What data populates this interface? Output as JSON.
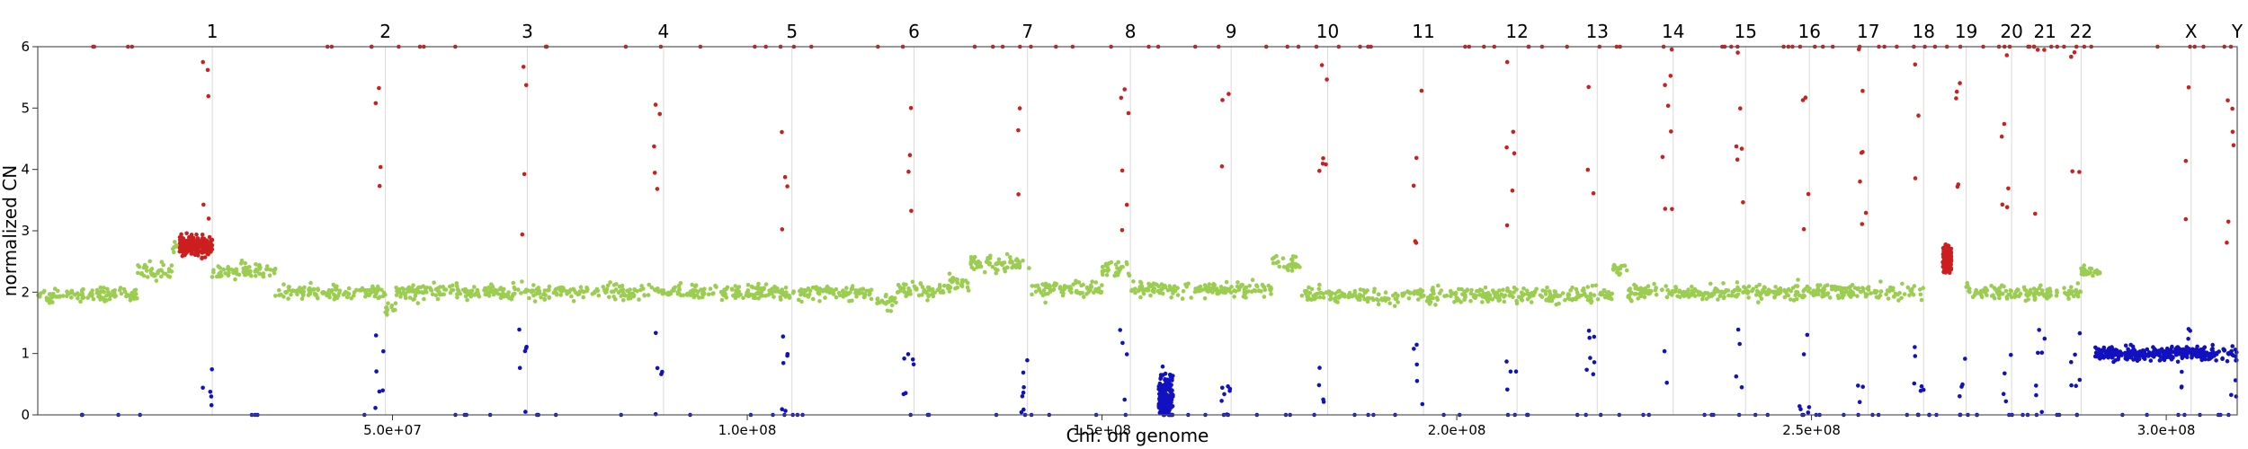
{
  "chart_data": {
    "type": "scatter",
    "title": "",
    "xlabel": "Chr. on genome",
    "ylabel": "normalized CN",
    "xlim": [
      0,
      310000000
    ],
    "ylim": [
      0,
      6
    ],
    "x_ticks": [
      {
        "value": 50000000,
        "label": "5.0e+07"
      },
      {
        "value": 100000000,
        "label": "1.0e+08"
      },
      {
        "value": 150000000,
        "label": "1.5e+08"
      },
      {
        "value": 200000000,
        "label": "2.0e+08"
      },
      {
        "value": 250000000,
        "label": "2.5e+08"
      },
      {
        "value": 300000000,
        "label": "3.0e+08"
      }
    ],
    "y_ticks": [
      0,
      1,
      2,
      3,
      4,
      5,
      6
    ],
    "chromosomes": [
      {
        "label": "1",
        "start": 0,
        "end": 24600000
      },
      {
        "label": "2",
        "start": 24600000,
        "end": 49000000
      },
      {
        "label": "3",
        "start": 49000000,
        "end": 69000000
      },
      {
        "label": "4",
        "start": 69000000,
        "end": 88200000
      },
      {
        "label": "5",
        "start": 88200000,
        "end": 106300000
      },
      {
        "label": "6",
        "start": 106300000,
        "end": 123500000
      },
      {
        "label": "7",
        "start": 123500000,
        "end": 139500000
      },
      {
        "label": "8",
        "start": 139500000,
        "end": 154000000
      },
      {
        "label": "9",
        "start": 154000000,
        "end": 168200000
      },
      {
        "label": "10",
        "start": 168200000,
        "end": 181800000
      },
      {
        "label": "11",
        "start": 181800000,
        "end": 195300000
      },
      {
        "label": "12",
        "start": 195300000,
        "end": 208500000
      },
      {
        "label": "13",
        "start": 208500000,
        "end": 219800000
      },
      {
        "label": "14",
        "start": 219800000,
        "end": 230500000
      },
      {
        "label": "15",
        "start": 230500000,
        "end": 240700000
      },
      {
        "label": "16",
        "start": 240700000,
        "end": 249700000
      },
      {
        "label": "17",
        "start": 249700000,
        "end": 258000000
      },
      {
        "label": "18",
        "start": 258000000,
        "end": 265800000
      },
      {
        "label": "19",
        "start": 265800000,
        "end": 271800000
      },
      {
        "label": "20",
        "start": 271800000,
        "end": 278200000
      },
      {
        "label": "21",
        "start": 278200000,
        "end": 282900000
      },
      {
        "label": "22",
        "start": 282900000,
        "end": 288000000
      },
      {
        "label": "X",
        "start": 288000000,
        "end": 303500000
      },
      {
        "label": "Y",
        "start": 303500000,
        "end": 310000000
      }
    ],
    "segments": [
      {
        "start": 0,
        "end": 14000000,
        "cn": 1.95
      },
      {
        "start": 14000000,
        "end": 19000000,
        "cn": 2.35
      },
      {
        "start": 19000000,
        "end": 24600000,
        "cn": 2.75
      },
      {
        "start": 24600000,
        "end": 33500000,
        "cn": 2.35
      },
      {
        "start": 33500000,
        "end": 49000000,
        "cn": 2.0
      },
      {
        "start": 49000000,
        "end": 50500000,
        "cn": 1.75
      },
      {
        "start": 50500000,
        "end": 118000000,
        "cn": 2.0
      },
      {
        "start": 118000000,
        "end": 121000000,
        "cn": 1.85
      },
      {
        "start": 121000000,
        "end": 128000000,
        "cn": 2.05
      },
      {
        "start": 128000000,
        "end": 131500000,
        "cn": 2.15
      },
      {
        "start": 131500000,
        "end": 140000000,
        "cn": 2.45
      },
      {
        "start": 140000000,
        "end": 150000000,
        "cn": 2.05
      },
      {
        "start": 150000000,
        "end": 154000000,
        "cn": 2.35
      },
      {
        "start": 154000000,
        "end": 174000000,
        "cn": 2.05
      },
      {
        "start": 174000000,
        "end": 178000000,
        "cn": 2.45
      },
      {
        "start": 178000000,
        "end": 222000000,
        "cn": 1.95
      },
      {
        "start": 222000000,
        "end": 224000000,
        "cn": 2.35
      },
      {
        "start": 224000000,
        "end": 265800000,
        "cn": 2.0
      },
      {
        "start": 271800000,
        "end": 288000000,
        "cn": 2.0
      },
      {
        "start": 288000000,
        "end": 291000000,
        "cn": 2.35
      },
      {
        "start": 291000000,
        "end": 310000000,
        "cn": 1.0
      }
    ],
    "series": [
      {
        "name": "",
        "color": "#9ACD50",
        "role": "normal copy number"
      },
      {
        "name": "",
        "color": "#CC1F1F",
        "role": "gain"
      },
      {
        "name": "",
        "color": "#1111C0",
        "role": "loss"
      }
    ],
    "gain_clusters": [
      {
        "start": 20000000,
        "end": 24600000,
        "cn": 2.75,
        "spread": 0.3
      },
      {
        "start": 268500000,
        "end": 269700000,
        "cn": 2.55,
        "spread": 0.35
      }
    ],
    "loss_clusters": [
      {
        "start": 158000000,
        "end": 160000000,
        "cn": 0.3,
        "spread": 0.8
      },
      {
        "start": 290000000,
        "end": 306000000,
        "cn": 1.0,
        "spread": 0.2
      }
    ],
    "grid": true,
    "legend": "none"
  }
}
